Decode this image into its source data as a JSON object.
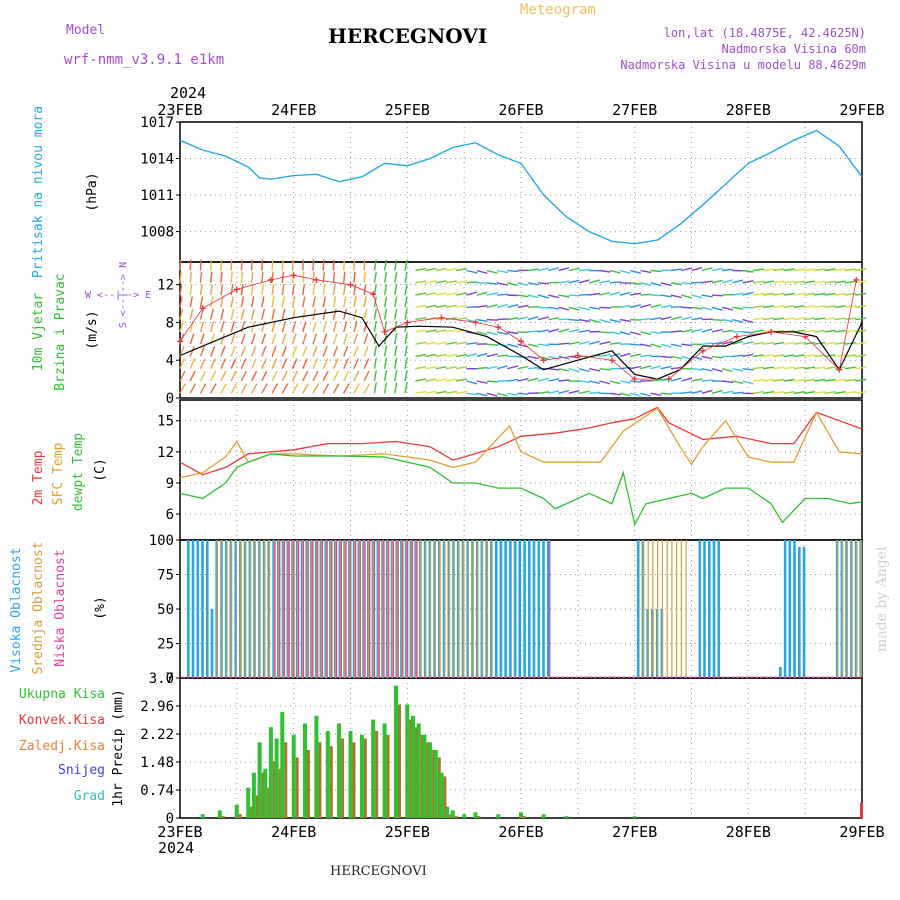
{
  "header": {
    "model_label": "Model",
    "model_name": "wrf-nmm_v3.9.1 e1km",
    "station": "HERCEGNOVI",
    "meteogram_label": "Meteogram",
    "lonlat": "lon,lat (18.4875E, 42.4625N)",
    "elevation": "Nadmorska Visina 60m",
    "model_elevation": "Nadmorska Visina u modelu 88.4629m",
    "year_top": "2024",
    "year_bottom": "2024",
    "footer_station": "HERCEGNOVI",
    "credit": "made by Angel",
    "wind_compass": "W <--|--> E",
    "wind_compass_vert": "S <--|--> N"
  },
  "colors": {
    "pressure": "#29a8e0",
    "wind_speed": "#000000",
    "gust": "#e8303a",
    "temp2m": "#e83a3a",
    "sfc_temp": "#e0a030",
    "dewpoint": "#30c030",
    "high_cloud": "#29a8e0",
    "mid_cloud": "#d4a03a",
    "low_cloud": "#e040a0",
    "total_precip": "#30c030",
    "conv_precip": "#e83a3a",
    "frozen_precip": "#f08030",
    "snow": "#4040e0",
    "hail": "#30c0c0"
  },
  "chart_data": [
    {
      "type": "line",
      "panel": "pressure",
      "ylabel_line1": "Pritisak na nivou mora",
      "ylabel_line2": "(hPa)",
      "ylim": [
        1005.5,
        1017
      ],
      "yticks": [
        1008,
        1011,
        1014,
        1017
      ],
      "xticks": [
        "23FEB",
        "24FEB",
        "25FEB",
        "26FEB",
        "27FEB",
        "28FEB",
        "29FEB"
      ],
      "x_days": [
        0,
        0.2,
        0.4,
        0.6,
        0.7,
        0.8,
        1.0,
        1.2,
        1.4,
        1.6,
        1.8,
        2.0,
        2.2,
        2.4,
        2.6,
        2.8,
        3.0,
        3.2,
        3.4,
        3.6,
        3.8,
        4.0,
        4.2,
        4.4,
        4.6,
        4.8,
        5.0,
        5.2,
        5.4,
        5.6,
        5.8,
        6.0
      ],
      "values": [
        1015.5,
        1014.7,
        1014.2,
        1013.3,
        1012.4,
        1012.3,
        1012.6,
        1012.7,
        1012.1,
        1012.5,
        1013.6,
        1013.4,
        1014.0,
        1014.9,
        1015.3,
        1014.3,
        1013.6,
        1011.0,
        1009.2,
        1008.0,
        1007.2,
        1007.0,
        1007.3,
        1008.6,
        1010.2,
        1011.9,
        1013.6,
        1014.5,
        1015.5,
        1016.3,
        1015.0,
        1012.5
      ]
    },
    {
      "type": "line",
      "panel": "wind",
      "ylabel_line1": "10m Vjetar",
      "ylabel_line2": "Brzina i Pravac",
      "ylabel_unit": "(m/s)",
      "ylim": [
        0,
        14.4
      ],
      "yticks": [
        0,
        4,
        8,
        12
      ],
      "series": [
        {
          "key": "speed",
          "x_days": [
            0,
            0.3,
            0.6,
            1.0,
            1.4,
            1.6,
            1.75,
            1.9,
            2.1,
            2.4,
            2.7,
            3.0,
            3.2,
            3.5,
            3.8,
            4.0,
            4.2,
            4.4,
            4.6,
            4.8,
            5.0,
            5.2,
            5.4,
            5.6,
            5.8,
            6.0
          ],
          "values": [
            4.5,
            6.0,
            7.5,
            8.5,
            9.2,
            8.5,
            5.5,
            7.5,
            7.6,
            7.5,
            6.5,
            4.5,
            3.0,
            4.0,
            5.0,
            2.5,
            2.0,
            3.0,
            5.5,
            5.5,
            6.5,
            7.0,
            7.0,
            6.5,
            3.0,
            8.0
          ]
        },
        {
          "key": "gust",
          "x_days": [
            0,
            0.2,
            0.5,
            0.8,
            1.0,
            1.2,
            1.5,
            1.7,
            1.8,
            2.0,
            2.3,
            2.6,
            2.8,
            3.0,
            3.2,
            3.5,
            3.8,
            4.0,
            4.3,
            4.6,
            4.9,
            5.2,
            5.5,
            5.8,
            5.95
          ],
          "values": [
            6.0,
            9.5,
            11.5,
            12.5,
            13.0,
            12.5,
            12.0,
            11.0,
            7.0,
            8.0,
            8.5,
            8.0,
            7.5,
            6.0,
            4.0,
            4.5,
            4.0,
            2.0,
            2.0,
            5.0,
            6.5,
            7.0,
            6.5,
            3.0,
            12.5
          ]
        }
      ]
    },
    {
      "type": "line",
      "panel": "temperature",
      "ylabel_line1": "2m Temp",
      "ylabel_line2": "SFC Temp",
      "ylabel_line3": "dewpt Temp",
      "ylabel_unit": "(C)",
      "ylim": [
        3.5,
        17
      ],
      "yticks": [
        6,
        9,
        12,
        15
      ],
      "series": [
        {
          "key": "temp2m",
          "x_days": [
            0,
            0.2,
            0.4,
            0.6,
            0.8,
            1.0,
            1.3,
            1.6,
            1.9,
            2.2,
            2.4,
            2.5,
            2.8,
            3.0,
            3.3,
            3.6,
            3.8,
            4.0,
            4.2,
            4.3,
            4.6,
            4.9,
            5.2,
            5.4,
            5.6,
            5.8,
            6.0
          ],
          "values": [
            11.0,
            9.8,
            10.5,
            11.8,
            12.0,
            12.2,
            12.8,
            12.8,
            13.0,
            12.5,
            11.2,
            11.5,
            12.5,
            13.5,
            13.8,
            14.3,
            14.8,
            15.2,
            16.3,
            14.8,
            13.2,
            13.5,
            12.8,
            12.8,
            15.8,
            15.0,
            14.2
          ]
        },
        {
          "key": "sfc_temp",
          "x_days": [
            0,
            0.2,
            0.4,
            0.5,
            0.6,
            0.8,
            1.0,
            1.4,
            1.8,
            2.2,
            2.4,
            2.6,
            2.9,
            3.0,
            3.2,
            3.4,
            3.7,
            3.9,
            4.2,
            4.4,
            4.5,
            4.6,
            4.8,
            5.0,
            5.2,
            5.4,
            5.6,
            5.8,
            6.0
          ],
          "values": [
            9.5,
            10.0,
            11.5,
            13.0,
            11.0,
            11.8,
            11.8,
            11.6,
            11.8,
            11.2,
            10.5,
            11.0,
            14.5,
            12.0,
            11.0,
            11.0,
            11.0,
            14.0,
            16.2,
            12.5,
            10.8,
            12.5,
            15.0,
            11.5,
            11.0,
            11.0,
            15.8,
            12.0,
            11.8
          ]
        },
        {
          "key": "dewpoint",
          "x_days": [
            0,
            0.2,
            0.4,
            0.5,
            0.6,
            0.8,
            1.0,
            1.4,
            1.8,
            2.2,
            2.4,
            2.6,
            2.8,
            3.0,
            3.2,
            3.3,
            3.6,
            3.8,
            3.9,
            4.0,
            4.1,
            4.3,
            4.5,
            4.6,
            4.8,
            5.0,
            5.2,
            5.3,
            5.5,
            5.7,
            5.9,
            6.0
          ],
          "values": [
            8.0,
            7.5,
            9.0,
            10.5,
            11.0,
            11.8,
            11.6,
            11.6,
            11.5,
            10.5,
            9.0,
            9.0,
            8.5,
            8.5,
            7.5,
            6.5,
            8.0,
            7.0,
            10.0,
            5.0,
            7.0,
            7.5,
            8.0,
            7.5,
            8.5,
            8.5,
            7.0,
            5.2,
            7.5,
            7.5,
            7.0,
            7.2
          ]
        }
      ]
    },
    {
      "type": "bar",
      "panel": "cloud",
      "ylabel_line1": "Visoka Oblacnost",
      "ylabel_line2": "Srednja Oblacnost",
      "ylabel_line3": "Niska Oblacnost",
      "ylabel_unit": "(%)",
      "ylim": [
        0,
        100
      ],
      "yticks": [
        0,
        25,
        50,
        75,
        100
      ],
      "high_overcast_ranges": [
        [
          0.05,
          3.25
        ],
        [
          4.0,
          4.25
        ],
        [
          4.55,
          4.6
        ],
        [
          4.6,
          4.75
        ],
        [
          5.3,
          5.35
        ],
        [
          5.35,
          5.5
        ],
        [
          5.75,
          6.0
        ]
      ],
      "mid_overcast_ranges": [
        [
          0.3,
          2.75
        ],
        [
          4.05,
          4.45
        ],
        [
          5.75,
          6.0
        ]
      ],
      "low_overcast_ranges": [
        [
          0.8,
          2.1
        ],
        [
          3.2,
          3.25
        ]
      ]
    },
    {
      "type": "bar",
      "panel": "precip",
      "legend": [
        "Ukupna Kisa",
        "Konvek.Kisa",
        "Zaledj.Kisa",
        "Snijeg",
        "Grad"
      ],
      "ylabel": "1hr Precip (mm)",
      "ylim": [
        0,
        3.7
      ],
      "yticks": [
        0,
        0.74,
        1.48,
        2.22,
        2.96,
        3.7
      ],
      "x_days": [
        0.2,
        0.35,
        0.5,
        0.6,
        0.65,
        0.7,
        0.75,
        0.8,
        0.85,
        0.9,
        1.0,
        1.1,
        1.2,
        1.3,
        1.4,
        1.5,
        1.6,
        1.7,
        1.8,
        1.9,
        2.0,
        2.05,
        2.1,
        2.15,
        2.2,
        2.25,
        2.3,
        2.35,
        2.4,
        2.5,
        2.6,
        2.8,
        3.0,
        3.2,
        3.4,
        4.0
      ],
      "total": [
        0.1,
        0.2,
        0.35,
        0.8,
        1.2,
        2.0,
        1.3,
        2.4,
        2.1,
        2.8,
        2.2,
        2.5,
        2.7,
        2.3,
        2.5,
        2.3,
        2.2,
        2.6,
        2.5,
        3.5,
        3.0,
        2.7,
        2.5,
        2.2,
        2.0,
        1.8,
        1.2,
        0.3,
        0.2,
        0.1,
        0.15,
        0.1,
        0.15,
        0.1,
        0.05,
        0.05
      ],
      "convective": [
        0.0,
        0.05,
        0.1,
        0.3,
        0.6,
        1.2,
        0.8,
        1.5,
        1.3,
        2.0,
        1.6,
        1.8,
        2.0,
        1.9,
        2.1,
        2.0,
        2.1,
        2.3,
        2.2,
        3.0,
        2.6,
        2.4,
        2.2,
        2.0,
        1.8,
        1.6,
        1.1,
        0.1,
        0.05,
        0.0,
        0.05,
        0.0,
        0.05,
        0.0,
        0.0,
        0.0
      ],
      "end_spike": 0.4
    }
  ]
}
